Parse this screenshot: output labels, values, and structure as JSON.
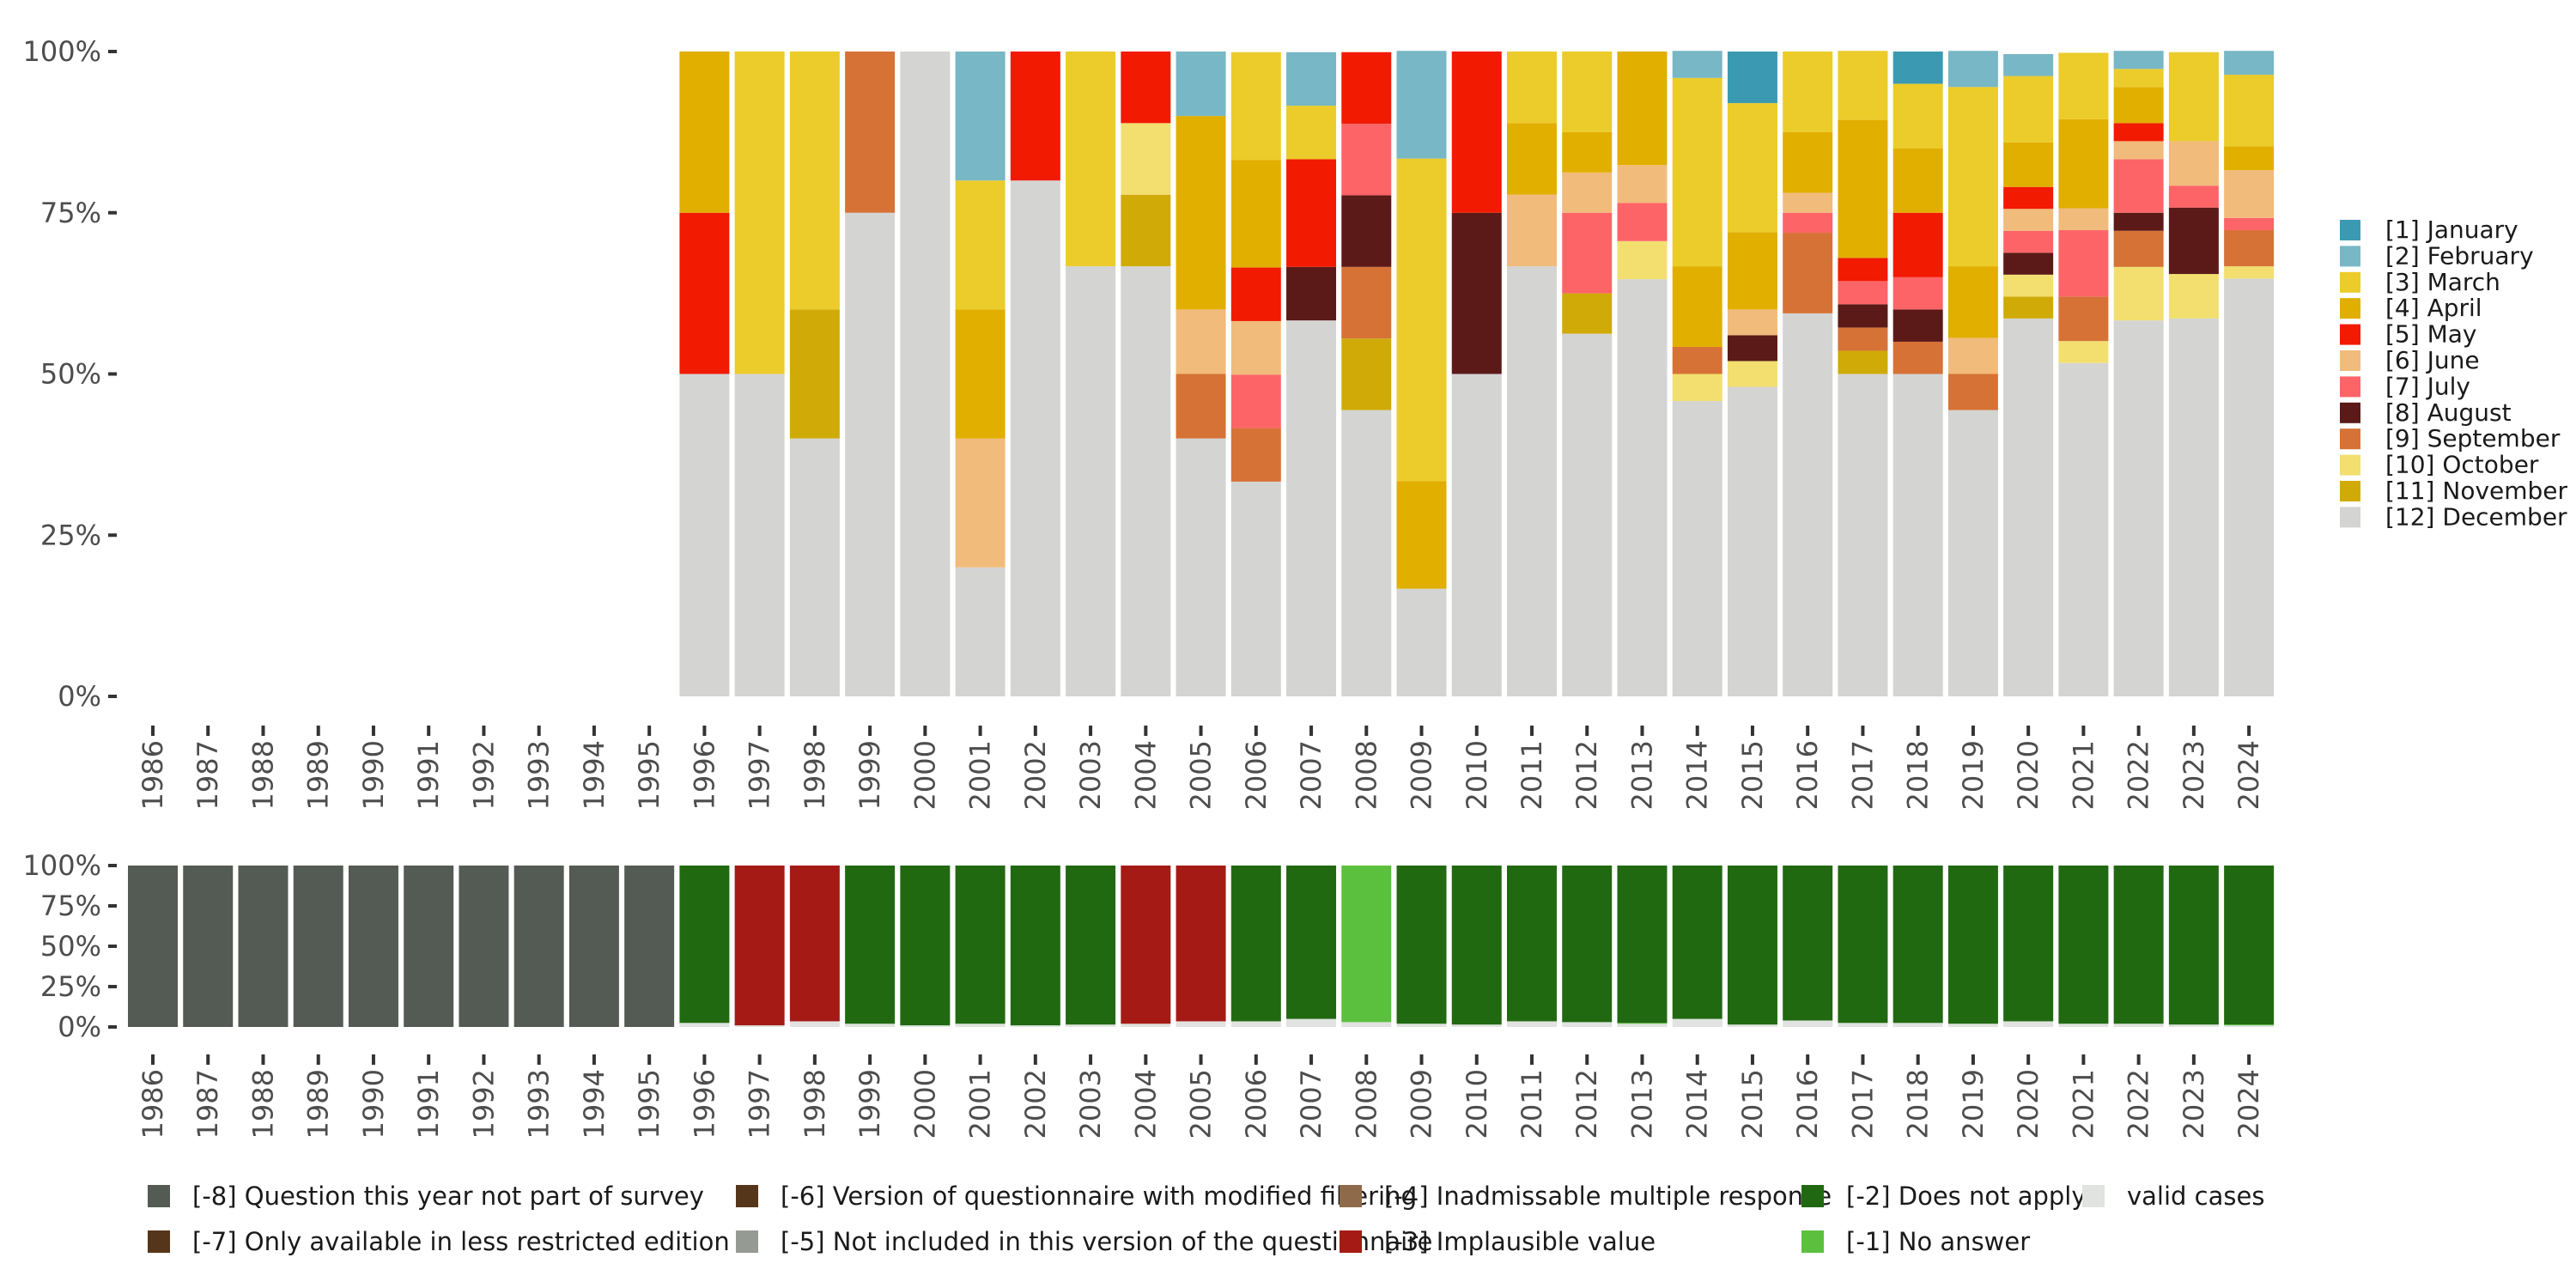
{
  "chart_data": [
    {
      "type": "bar",
      "stacked": true,
      "normalized": true,
      "title": "",
      "xlabel": "",
      "ylabel": "",
      "ylim": [
        0,
        100
      ],
      "y_ticks": [
        "0%",
        "25%",
        "50%",
        "75%",
        "100%"
      ],
      "y_tick_values": [
        0,
        25,
        50,
        75,
        100
      ],
      "legend_position": "right",
      "categories": [
        "1986",
        "1987",
        "1988",
        "1989",
        "1990",
        "1991",
        "1992",
        "1993",
        "1994",
        "1995",
        "1996",
        "1997",
        "1998",
        "1999",
        "2000",
        "2001",
        "2002",
        "2003",
        "2004",
        "2005",
        "2006",
        "2007",
        "2008",
        "2009",
        "2010",
        "2011",
        "2012",
        "2013",
        "2014",
        "2015",
        "2016",
        "2017",
        "2018",
        "2019",
        "2020",
        "2021",
        "2022",
        "2023",
        "2024"
      ],
      "stack_order_bottom_to_top": [
        "[12] December",
        "[11] November",
        "[10] October",
        "[9] September",
        "[8] August",
        "[7] July",
        "[6] June",
        "[5] May",
        "[4] April",
        "[3] March",
        "[2] February",
        "[1] January"
      ],
      "legend": [
        {
          "label": "[1] January",
          "color": "#3b9ab2"
        },
        {
          "label": "[2] February",
          "color": "#78b7c5"
        },
        {
          "label": "[3] March",
          "color": "#ebcc2a"
        },
        {
          "label": "[4] April",
          "color": "#e1af00"
        },
        {
          "label": "[5] May",
          "color": "#f21a00"
        },
        {
          "label": "[6] June",
          "color": "#f1bb7b"
        },
        {
          "label": "[7] July",
          "color": "#fd6467"
        },
        {
          "label": "[8] August",
          "color": "#5b1a18"
        },
        {
          "label": "[9] September",
          "color": "#d67236"
        },
        {
          "label": "[10] October",
          "color": "#f2df6f"
        },
        {
          "label": "[11] November",
          "color": "#d0ab08"
        },
        {
          "label": "[12] December",
          "color": "#d4d4d3"
        }
      ],
      "series": [
        {
          "name": "[1] January",
          "values": [
            0,
            0,
            0,
            0,
            0,
            0,
            0,
            0,
            0,
            0,
            0,
            0,
            0,
            0,
            0,
            0,
            0,
            0,
            0,
            0,
            0,
            0,
            0,
            0,
            0,
            0,
            0,
            0,
            0,
            8.0,
            0,
            0,
            5.0,
            0,
            0,
            0,
            0,
            0,
            0
          ]
        },
        {
          "name": "[2] February",
          "values": [
            0,
            0,
            0,
            0,
            0,
            0,
            0,
            0,
            0,
            0,
            0,
            0,
            0,
            0,
            0,
            20.0,
            0,
            0,
            0,
            10.0,
            0,
            8.3,
            0,
            16.7,
            0,
            0,
            0,
            0,
            4.2,
            0,
            0,
            0,
            0,
            5.6,
            3.4,
            0,
            2.8,
            0,
            3.7
          ]
        },
        {
          "name": "[3] March",
          "values": [
            0,
            0,
            0,
            0,
            0,
            0,
            0,
            0,
            0,
            0,
            0,
            50.0,
            40.0,
            0,
            0,
            20.0,
            0,
            33.3,
            0,
            0,
            16.7,
            8.3,
            0,
            50.0,
            0,
            11.1,
            12.5,
            0,
            29.2,
            20.0,
            12.5,
            10.7,
            10.0,
            27.8,
            10.3,
            10.3,
            2.8,
            13.8,
            11.1
          ]
        },
        {
          "name": "[4] April",
          "values": [
            0,
            0,
            0,
            0,
            0,
            0,
            0,
            0,
            0,
            0,
            25.0,
            0,
            0,
            0,
            0,
            20.0,
            0,
            0,
            0,
            30.0,
            16.7,
            0,
            0,
            16.7,
            0,
            11.1,
            6.25,
            17.6,
            12.5,
            12.0,
            9.4,
            21.4,
            10.0,
            11.1,
            6.9,
            13.8,
            5.6,
            0,
            3.7
          ]
        },
        {
          "name": "[5] May",
          "values": [
            0,
            0,
            0,
            0,
            0,
            0,
            0,
            0,
            0,
            0,
            25.0,
            0,
            0,
            0,
            0,
            0,
            20.0,
            0,
            11.1,
            0,
            8.3,
            16.7,
            11.1,
            0,
            25.0,
            0,
            0,
            0,
            0,
            0,
            0,
            3.6,
            10.0,
            0,
            3.4,
            0,
            2.8,
            0,
            0
          ]
        },
        {
          "name": "[6] June",
          "values": [
            0,
            0,
            0,
            0,
            0,
            0,
            0,
            0,
            0,
            0,
            0,
            0,
            0,
            0,
            0,
            20.0,
            0,
            0,
            0,
            10.0,
            8.3,
            0,
            0,
            0,
            0,
            11.1,
            6.25,
            5.9,
            0,
            4.0,
            3.1,
            0,
            0,
            5.6,
            3.4,
            3.4,
            2.8,
            6.9,
            7.4
          ]
        },
        {
          "name": "[7] July",
          "values": [
            0,
            0,
            0,
            0,
            0,
            0,
            0,
            0,
            0,
            0,
            0,
            0,
            0,
            0,
            0,
            0,
            0,
            0,
            0,
            0,
            8.3,
            0,
            11.1,
            0,
            0,
            0,
            12.5,
            5.9,
            0,
            0,
            3.1,
            3.6,
            5.0,
            0,
            3.4,
            10.3,
            8.3,
            3.4,
            1.9
          ]
        },
        {
          "name": "[8] August",
          "values": [
            0,
            0,
            0,
            0,
            0,
            0,
            0,
            0,
            0,
            0,
            0,
            0,
            0,
            0,
            0,
            0,
            0,
            0,
            0,
            0,
            0,
            8.3,
            11.1,
            0,
            25.0,
            0,
            0,
            0,
            0,
            4.0,
            0,
            3.6,
            5.0,
            0,
            3.4,
            0,
            2.8,
            10.3,
            0
          ]
        },
        {
          "name": "[9] September",
          "values": [
            0,
            0,
            0,
            0,
            0,
            0,
            0,
            0,
            0,
            0,
            0,
            0,
            0,
            25.0,
            0,
            0,
            0,
            0,
            0,
            10.0,
            8.3,
            0,
            11.1,
            0,
            0,
            0,
            0,
            0,
            4.2,
            0,
            12.5,
            3.6,
            5.0,
            5.6,
            0,
            6.9,
            5.6,
            0,
            5.6
          ]
        },
        {
          "name": "[10] October",
          "values": [
            0,
            0,
            0,
            0,
            0,
            0,
            0,
            0,
            0,
            0,
            0,
            0,
            0,
            0,
            0,
            0,
            0,
            0,
            11.1,
            0,
            0,
            0,
            0,
            0,
            0,
            0,
            0,
            5.9,
            4.2,
            4.0,
            0,
            0,
            0,
            0,
            3.4,
            3.4,
            8.3,
            6.9,
            1.9
          ]
        },
        {
          "name": "[11] November",
          "values": [
            0,
            0,
            0,
            0,
            0,
            0,
            0,
            0,
            0,
            0,
            0,
            0,
            20.0,
            0,
            0,
            0,
            0,
            0,
            11.1,
            0,
            0,
            0,
            11.1,
            0,
            0,
            0,
            6.25,
            0,
            0,
            0,
            0,
            3.6,
            0,
            0,
            3.4,
            0,
            0,
            0,
            0
          ]
        },
        {
          "name": "[12] December",
          "values": [
            0,
            0,
            0,
            0,
            0,
            0,
            0,
            0,
            0,
            0,
            50.0,
            50.0,
            40.0,
            75.0,
            100.0,
            20.0,
            80.0,
            66.7,
            66.7,
            40.0,
            33.3,
            58.3,
            44.4,
            16.7,
            50.0,
            66.7,
            56.25,
            64.7,
            45.8,
            48.0,
            59.4,
            50.0,
            50.0,
            44.4,
            58.6,
            51.7,
            58.3,
            58.6,
            64.8
          ]
        }
      ]
    },
    {
      "type": "bar",
      "stacked": true,
      "normalized": true,
      "title": "",
      "xlabel": "",
      "ylabel": "",
      "ylim": [
        0,
        100
      ],
      "y_ticks": [
        "0%",
        "25%",
        "50%",
        "75%",
        "100%"
      ],
      "y_tick_values": [
        0,
        25,
        50,
        75,
        100
      ],
      "legend_position": "bottom",
      "categories": [
        "1986",
        "1987",
        "1988",
        "1989",
        "1990",
        "1991",
        "1992",
        "1993",
        "1994",
        "1995",
        "1996",
        "1997",
        "1998",
        "1999",
        "2000",
        "2001",
        "2002",
        "2003",
        "2004",
        "2005",
        "2006",
        "2007",
        "2008",
        "2009",
        "2010",
        "2011",
        "2012",
        "2013",
        "2014",
        "2015",
        "2016",
        "2017",
        "2018",
        "2019",
        "2020",
        "2021",
        "2022",
        "2023",
        "2024"
      ],
      "stack_order_bottom_to_top": [
        "valid cases",
        "[-1] No answer",
        "[-2] Does not apply",
        "[-3] Implausible value",
        "[-4] Inadmissable multiple response",
        "[-5] Not included in this version of the questionnaire",
        "[-6] Version of questionnaire with modified filtering",
        "[-7] Only available in less restricted edition",
        "[-8] Question this year not part of survey"
      ],
      "legend": [
        {
          "label": "[-8] Question this year not part of survey",
          "color": "#545b54"
        },
        {
          "label": "[-7] Only available in less restricted edition",
          "color": "#56361a"
        },
        {
          "label": "[-6] Version of questionnaire with modified filtering",
          "color": "#56361a"
        },
        {
          "label": "[-5] Not included in this version of the questionnaire",
          "color": "#959a93"
        },
        {
          "label": "[-4] Inadmissable multiple response",
          "color": "#8f6a4a"
        },
        {
          "label": "[-3] Implausible value",
          "color": "#a51a15"
        },
        {
          "label": "[-2] Does not apply",
          "color": "#216911"
        },
        {
          "label": "[-1] No answer",
          "color": "#5bc03e"
        },
        {
          "label": "valid cases",
          "color": "#e0e3df"
        }
      ],
      "series": [
        {
          "name": "[-8] Question this year not part of survey",
          "values": [
            100,
            100,
            100,
            100,
            100,
            100,
            100,
            100,
            100,
            100,
            0,
            0,
            0,
            0,
            0,
            0,
            0,
            0,
            0,
            0,
            0,
            0,
            0,
            0,
            0,
            0,
            0,
            0,
            0,
            0,
            0,
            0,
            0,
            0,
            0,
            0,
            0,
            0,
            0
          ]
        },
        {
          "name": "[-3] Implausible value",
          "values": [
            0,
            0,
            0,
            0,
            0,
            0,
            0,
            0,
            0,
            0,
            0,
            99.0,
            96.5,
            0,
            0,
            0,
            0,
            0,
            98.0,
            96.5,
            0,
            0,
            0,
            0,
            0,
            0,
            0,
            0,
            0,
            0,
            0,
            0,
            0,
            0,
            0,
            0,
            0,
            0,
            0
          ]
        },
        {
          "name": "[-2] Does not apply",
          "values": [
            0,
            0,
            0,
            0,
            0,
            0,
            0,
            0,
            0,
            0,
            97.5,
            0,
            0,
            98.0,
            99.0,
            98.0,
            99.0,
            98.5,
            0,
            0,
            96.5,
            95.0,
            0,
            98.0,
            98.5,
            96.5,
            97.0,
            97.5,
            95.0,
            98.5,
            96.0,
            97.5,
            97.5,
            98.0,
            96.5,
            98.0,
            98.0,
            98.5,
            98.5
          ]
        },
        {
          "name": "[-1] No answer",
          "values": [
            0,
            0,
            0,
            0,
            0,
            0,
            0,
            0,
            0,
            0,
            0,
            0,
            0,
            0,
            0,
            0,
            0,
            0,
            0,
            0,
            0,
            0,
            97.0,
            0,
            0,
            0,
            0,
            0.5,
            0,
            0,
            0,
            0,
            0,
            0,
            0,
            0,
            0,
            0,
            0.5
          ]
        },
        {
          "name": "valid cases",
          "values": [
            0,
            0,
            0,
            0,
            0,
            0,
            0,
            0,
            0,
            0,
            2.5,
            1.0,
            3.5,
            2.0,
            1.0,
            2.0,
            1.0,
            1.5,
            2.0,
            3.5,
            3.5,
            5.0,
            3.0,
            2.0,
            1.5,
            3.5,
            3.0,
            2.0,
            5.0,
            1.5,
            4.0,
            2.5,
            2.5,
            2.0,
            3.5,
            2.0,
            2.0,
            1.5,
            1.0
          ]
        }
      ]
    }
  ]
}
